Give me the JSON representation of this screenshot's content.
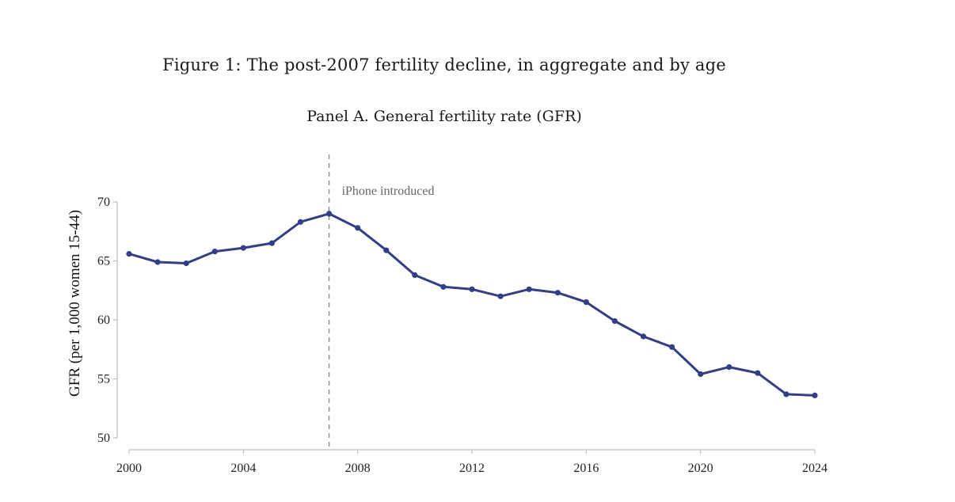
{
  "figure_title": "Figure 1: The post-2007 fertility decline, in aggregate and by age",
  "panel_title": "Panel A. General fertility rate (GFR)",
  "chart_data": {
    "type": "line",
    "title": "Panel A. General fertility rate (GFR)",
    "xlabel": "",
    "ylabel": "GFR (per 1,000 women 15-44)",
    "xlim": [
      2000,
      2024
    ],
    "ylim": [
      50,
      70
    ],
    "xticks": [
      2000,
      2004,
      2008,
      2012,
      2016,
      2020,
      2024
    ],
    "yticks": [
      50,
      55,
      60,
      65,
      70
    ],
    "grid": false,
    "legend": "none",
    "series": [
      {
        "color": "#333f85",
        "x": [
          2000,
          2001,
          2002,
          2003,
          2004,
          2005,
          2006,
          2007,
          2008,
          2009,
          2010,
          2011,
          2012,
          2013,
          2014,
          2015,
          2016,
          2017,
          2018,
          2019,
          2020,
          2021,
          2022,
          2023,
          2024
        ],
        "y": [
          65.6,
          64.9,
          64.8,
          65.8,
          66.1,
          66.5,
          68.3,
          69.0,
          67.8,
          65.9,
          63.8,
          62.8,
          62.6,
          62.0,
          62.6,
          62.3,
          61.5,
          59.9,
          58.6,
          57.7,
          55.4,
          56.0,
          55.5,
          53.7,
          53.6
        ]
      }
    ],
    "annotations": [
      {
        "x": 2007,
        "label": "iPhone introduced",
        "style": "dashed-vertical-line"
      }
    ]
  }
}
